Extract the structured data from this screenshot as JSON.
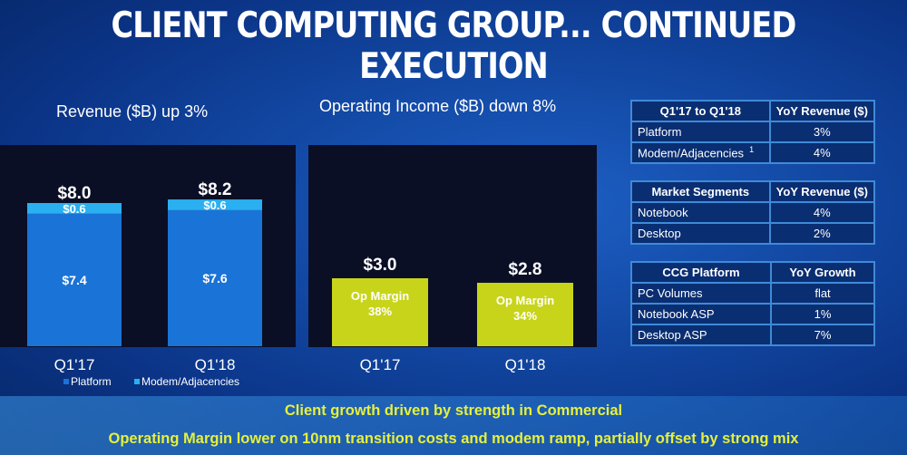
{
  "title": "CLIENT COMPUTING GROUP... CONTINUED EXECUTION",
  "chart_data": [
    {
      "type": "bar",
      "title": "Revenue ($B) up 3%",
      "categories": [
        "Q1'17",
        "Q1'18"
      ],
      "series": [
        {
          "name": "Platform",
          "values": [
            7.4,
            7.6
          ],
          "labels": [
            "$7.4",
            "$7.6"
          ],
          "color": "#1a73d6"
        },
        {
          "name": "Modem/Adjacencies",
          "values": [
            0.6,
            0.6
          ],
          "labels": [
            "$0.6",
            "$0.6"
          ],
          "color": "#2ab0f0"
        }
      ],
      "totals": [
        "$8.0",
        "$8.2"
      ],
      "stacked": true,
      "legend": "bottom"
    },
    {
      "type": "bar",
      "title": "Operating Income ($B) down 8%",
      "categories": [
        "Q1'17",
        "Q1'18"
      ],
      "values": [
        3.0,
        2.8
      ],
      "value_labels": [
        "$3.0",
        "$2.8"
      ],
      "inner_labels": [
        [
          "Op Margin",
          "38%"
        ],
        [
          "Op Margin",
          "34%"
        ]
      ],
      "color": "#c8d41a"
    }
  ],
  "tables": [
    {
      "headers": [
        "Q1'17 to Q1'18",
        "YoY Revenue ($)"
      ],
      "rows": [
        {
          "label": "Platform",
          "sup": "",
          "value": "3%"
        },
        {
          "label": "Modem/Adjacencies",
          "sup": "1",
          "value": "4%"
        }
      ]
    },
    {
      "headers": [
        "Market Segments",
        "YoY Revenue ($)"
      ],
      "rows": [
        {
          "label": "Notebook",
          "value": "4%"
        },
        {
          "label": "Desktop",
          "value": "2%"
        }
      ]
    },
    {
      "headers": [
        "CCG Platform",
        "YoY Growth"
      ],
      "rows": [
        {
          "label": "PC Volumes",
          "value": "flat"
        },
        {
          "label": "Notebook ASP",
          "value": "1%"
        },
        {
          "label": "Desktop ASP",
          "value": "7%"
        }
      ]
    }
  ],
  "banner": {
    "line1": "Client growth driven by strength in Commercial",
    "line2": "Operating Margin lower on 10nm transition costs and modem ramp, partially offset by strong mix"
  }
}
